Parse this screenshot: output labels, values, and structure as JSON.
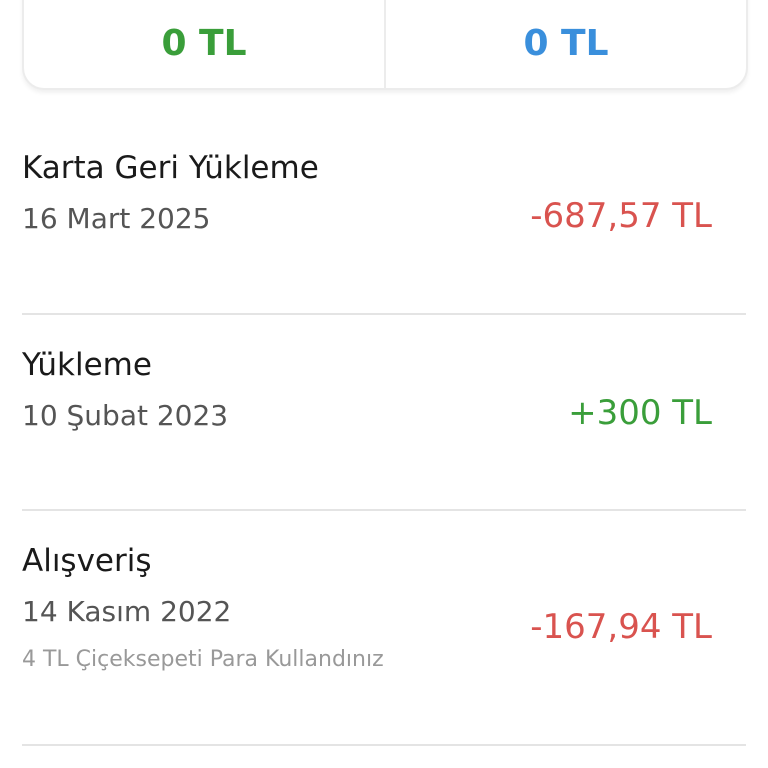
{
  "summary": {
    "left": {
      "value": "0 TL",
      "color": "#3a9e3a"
    },
    "right": {
      "value": "0 TL",
      "color": "#3a8fdc"
    }
  },
  "transactions": [
    {
      "title": "Karta Geri Yükleme",
      "date": "16 Mart 2025",
      "amount": "-687,57 TL",
      "color": "#d9534f"
    },
    {
      "title": "Yükleme",
      "date": "10 Şubat 2023",
      "amount": "+300 TL",
      "color": "#3a9e3a"
    },
    {
      "title": "Alışveriş",
      "date": "14 Kasım 2022",
      "note": "4 TL Çiçeksepeti Para Kullandınız",
      "amount": "-167,94 TL",
      "color": "#d9534f"
    }
  ]
}
